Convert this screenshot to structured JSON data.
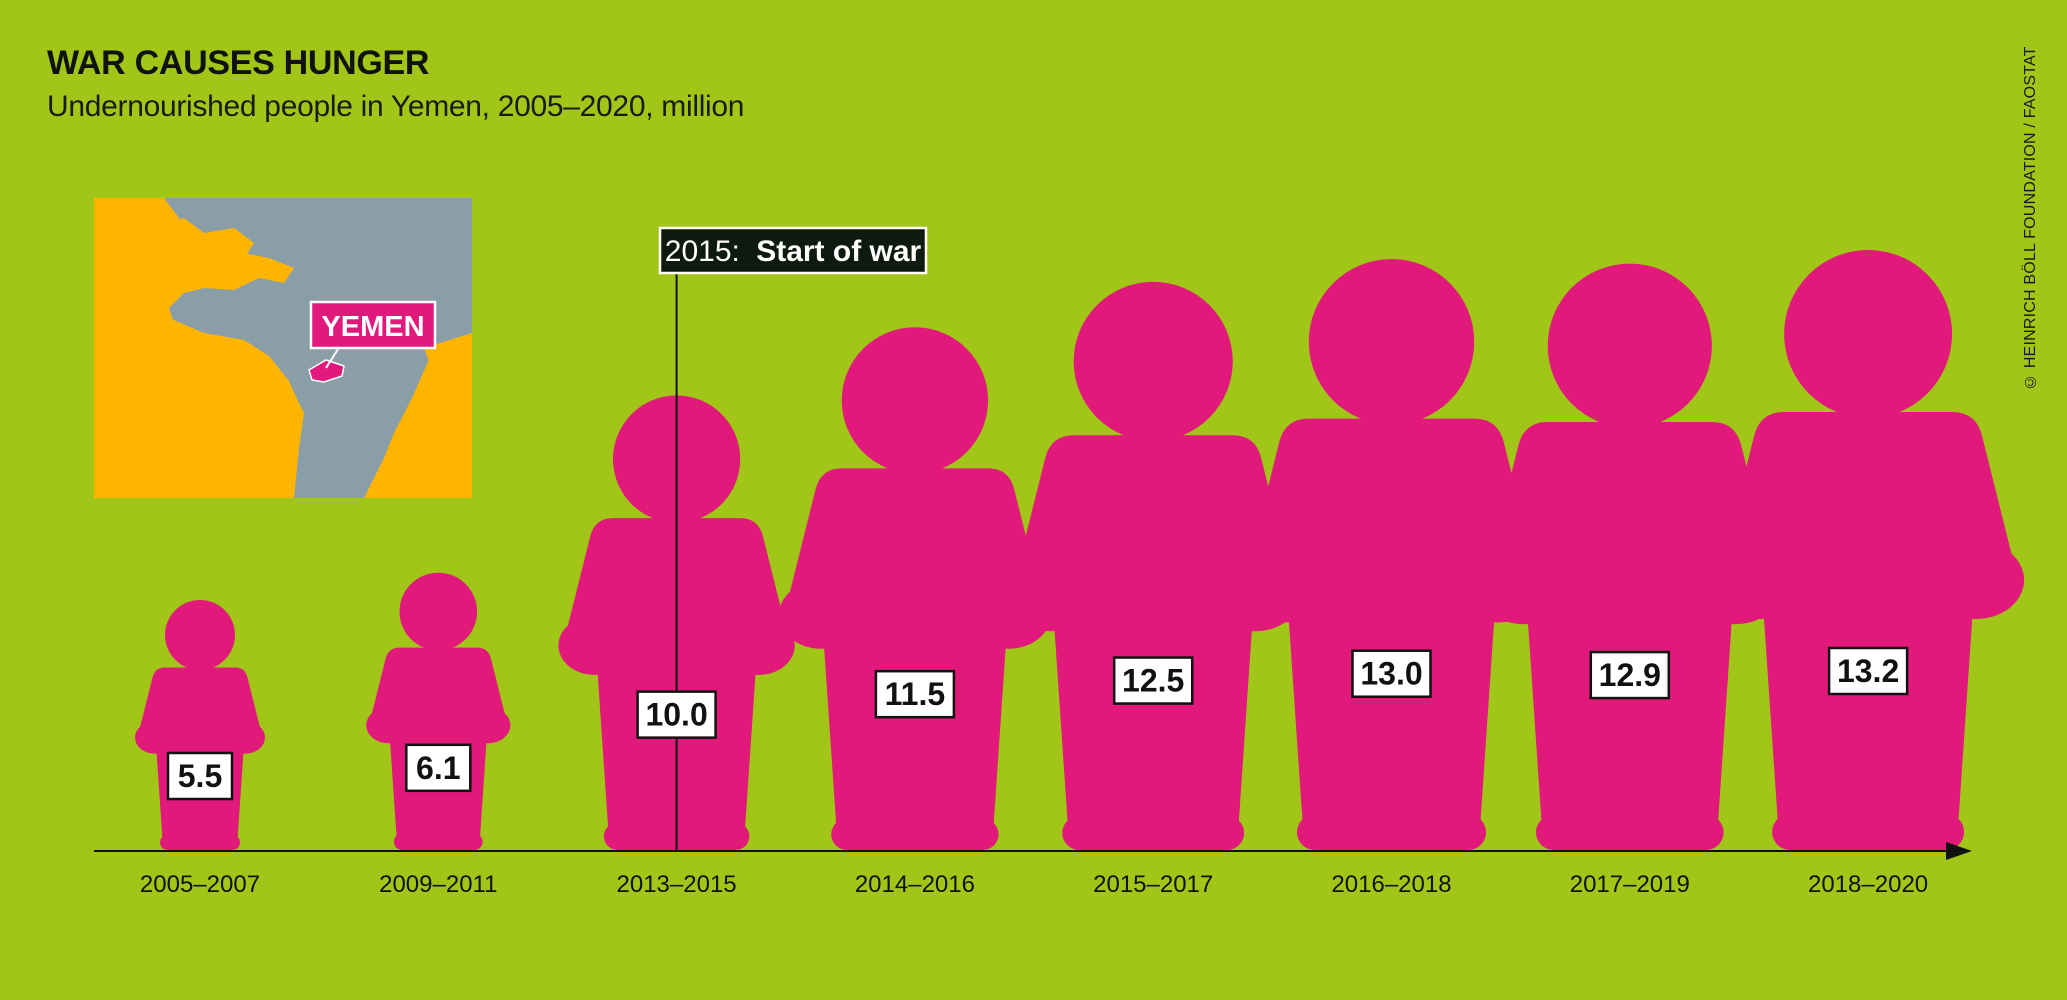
{
  "title": "WAR CAUSES HUNGER",
  "subtitle": "Undernourished people in Yemen, 2005–2020, million",
  "credit": "© HEINRICH BÖLL FOUNDATION / FAOSTAT",
  "map": {
    "label": "YEMEN"
  },
  "colors": {
    "background": "#a2c617",
    "figure": "#e0197a",
    "map_land": "#ffb400",
    "map_sea": "#8a9ea8",
    "annotation_box": "#0e1a10"
  },
  "annotation": {
    "year": "2015:",
    "text": "Start of war",
    "at_category": "2013–2015"
  },
  "chart_data": {
    "type": "bar",
    "categories": [
      "2005–2007",
      "2009–2011",
      "2013–2015",
      "2014–2016",
      "2015–2017",
      "2016–2018",
      "2017–2019",
      "2018–2020"
    ],
    "values": [
      5.5,
      6.1,
      10.0,
      11.5,
      12.5,
      13.0,
      12.9,
      13.2
    ],
    "value_labels": [
      "5.5",
      "6.1",
      "10.0",
      "11.5",
      "12.5",
      "13.0",
      "12.9",
      "13.2"
    ],
    "title": "WAR CAUSES HUNGER",
    "subtitle": "Undernourished people in Yemen, 2005–2020, million",
    "xlabel": "",
    "ylabel": "",
    "ylim": [
      0,
      13.2
    ],
    "grid": false,
    "legend": "none"
  }
}
